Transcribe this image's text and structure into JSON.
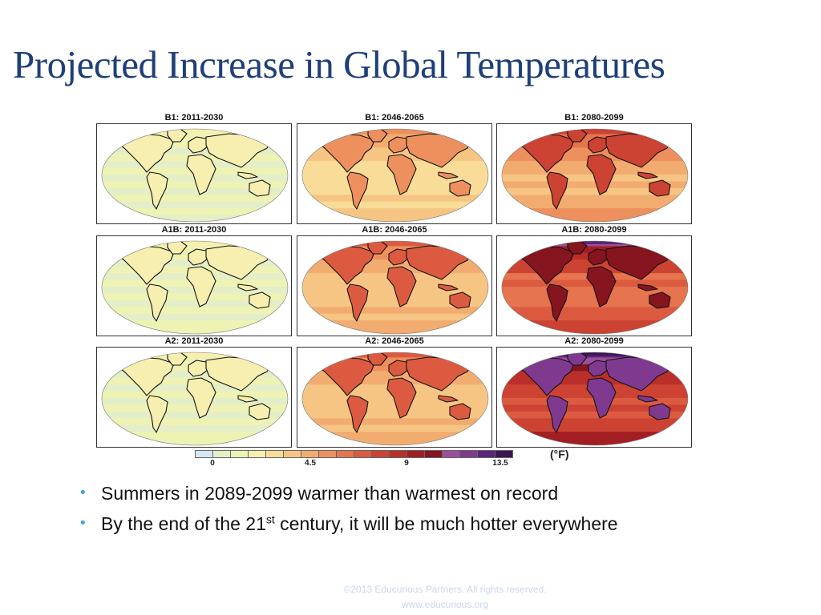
{
  "slide": {
    "title": "Projected Increase in Global Temperatures"
  },
  "figure": {
    "panels": [
      {
        "label": "B1: 2011-2030",
        "scenario": "B1",
        "period": "2011-2030",
        "level": 0.12
      },
      {
        "label": "B1: 2046-2065",
        "scenario": "B1",
        "period": "2046-2065",
        "level": 0.32
      },
      {
        "label": "B1: 2080-2099",
        "scenario": "B1",
        "period": "2080-2099",
        "level": 0.45
      },
      {
        "label": "A1B: 2011-2030",
        "scenario": "A1B",
        "period": "2011-2030",
        "level": 0.13
      },
      {
        "label": "A1B: 2046-2065",
        "scenario": "A1B",
        "period": "2046-2065",
        "level": 0.4
      },
      {
        "label": "A1B: 2080-2099",
        "scenario": "A1B",
        "period": "2080-2099",
        "level": 0.62
      },
      {
        "label": "A2: 2011-2030",
        "scenario": "A2",
        "period": "2011-2030",
        "level": 0.13
      },
      {
        "label": "A2: 2046-2065",
        "scenario": "A2",
        "period": "2046-2065",
        "level": 0.4
      },
      {
        "label": "A2: 2080-2099",
        "scenario": "A2",
        "period": "2080-2099",
        "level": 0.72
      }
    ],
    "colorbar": {
      "ticks": [
        "0",
        "4.5",
        "9",
        "13.5"
      ],
      "unit": "(°F)",
      "colors": [
        "#d6e6f2",
        "#e4eec8",
        "#eef3b4",
        "#f6efb0",
        "#f8dc98",
        "#f6c584",
        "#f3ac70",
        "#ee905e",
        "#e6744e",
        "#dc5b40",
        "#cd4333",
        "#bb2f2a",
        "#a21e23",
        "#86151f",
        "#9c4f9e",
        "#7f3a8f",
        "#5b2679",
        "#3d1552"
      ]
    }
  },
  "bullets": {
    "items": [
      {
        "text": "Summers in 2089-2099 warmer than warmest on record"
      },
      {
        "before": "By the end of the 21",
        "sup": "st",
        "after": " century, it will be much hotter everywhere"
      }
    ]
  },
  "footer": {
    "copyright": "©2013 Educurious Partners. All rights reserved.",
    "website": "www.educurious.org"
  }
}
